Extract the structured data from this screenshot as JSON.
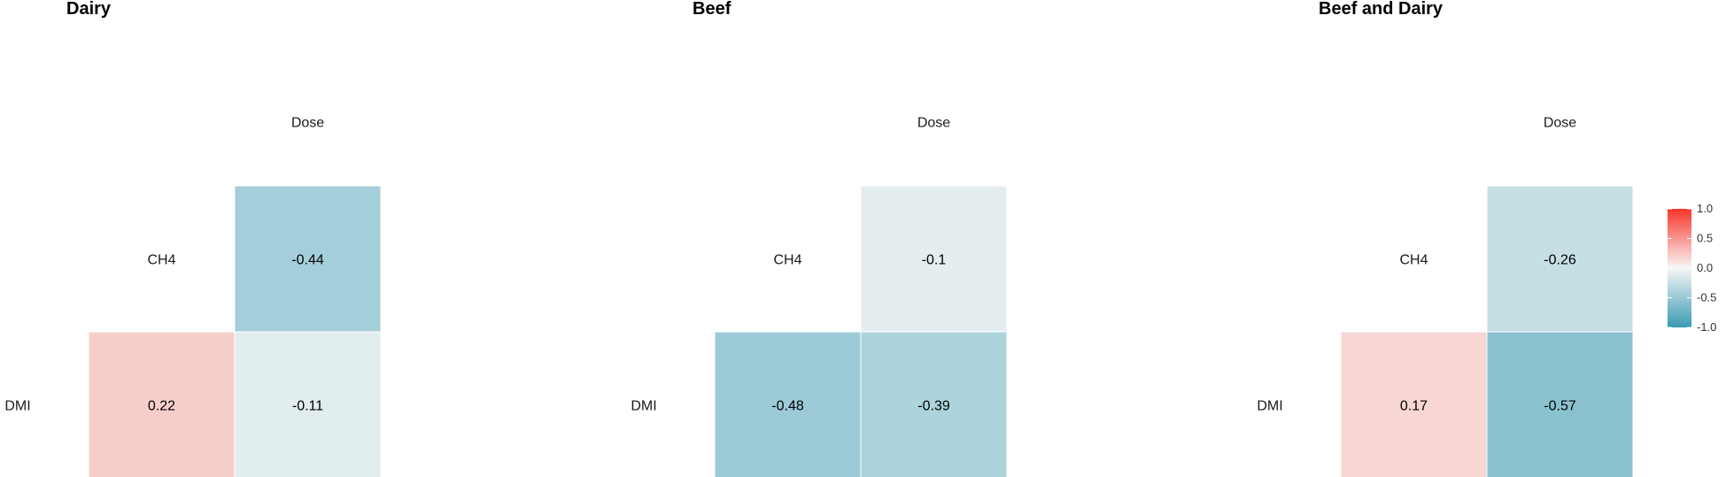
{
  "chart_data": [
    {
      "type": "heatmap",
      "title": "Dairy",
      "variables": [
        "DMI",
        "CH4",
        "Dose"
      ],
      "cells": [
        {
          "row": "CH4",
          "col": "Dose",
          "value": -0.44,
          "label": "-0.44"
        },
        {
          "row": "DMI",
          "col": "CH4",
          "value": 0.22,
          "label": "0.22"
        },
        {
          "row": "DMI",
          "col": "Dose",
          "value": -0.11,
          "label": "-0.11"
        }
      ]
    },
    {
      "type": "heatmap",
      "title": "Beef",
      "variables": [
        "DMI",
        "CH4",
        "Dose"
      ],
      "cells": [
        {
          "row": "CH4",
          "col": "Dose",
          "value": -0.1,
          "label": "-0.1"
        },
        {
          "row": "DMI",
          "col": "CH4",
          "value": -0.48,
          "label": "-0.48"
        },
        {
          "row": "DMI",
          "col": "Dose",
          "value": -0.39,
          "label": "-0.39"
        }
      ]
    },
    {
      "type": "heatmap",
      "title": "Beef and Dairy",
      "variables": [
        "DMI",
        "CH4",
        "Dose"
      ],
      "cells": [
        {
          "row": "CH4",
          "col": "Dose",
          "value": -0.26,
          "label": "-0.26"
        },
        {
          "row": "DMI",
          "col": "CH4",
          "value": 0.17,
          "label": "0.17"
        },
        {
          "row": "DMI",
          "col": "Dose",
          "value": -0.57,
          "label": "-0.57"
        }
      ]
    }
  ],
  "legend": {
    "ticks": [
      "1.0",
      "0.5",
      "0.0",
      "-0.5",
      "-1.0"
    ],
    "scale": {
      "min": -1.0,
      "max": 1.0
    },
    "colors": {
      "low": "#3a9ab2",
      "mid": "#f7f7f7",
      "high": "#f7362a"
    }
  }
}
